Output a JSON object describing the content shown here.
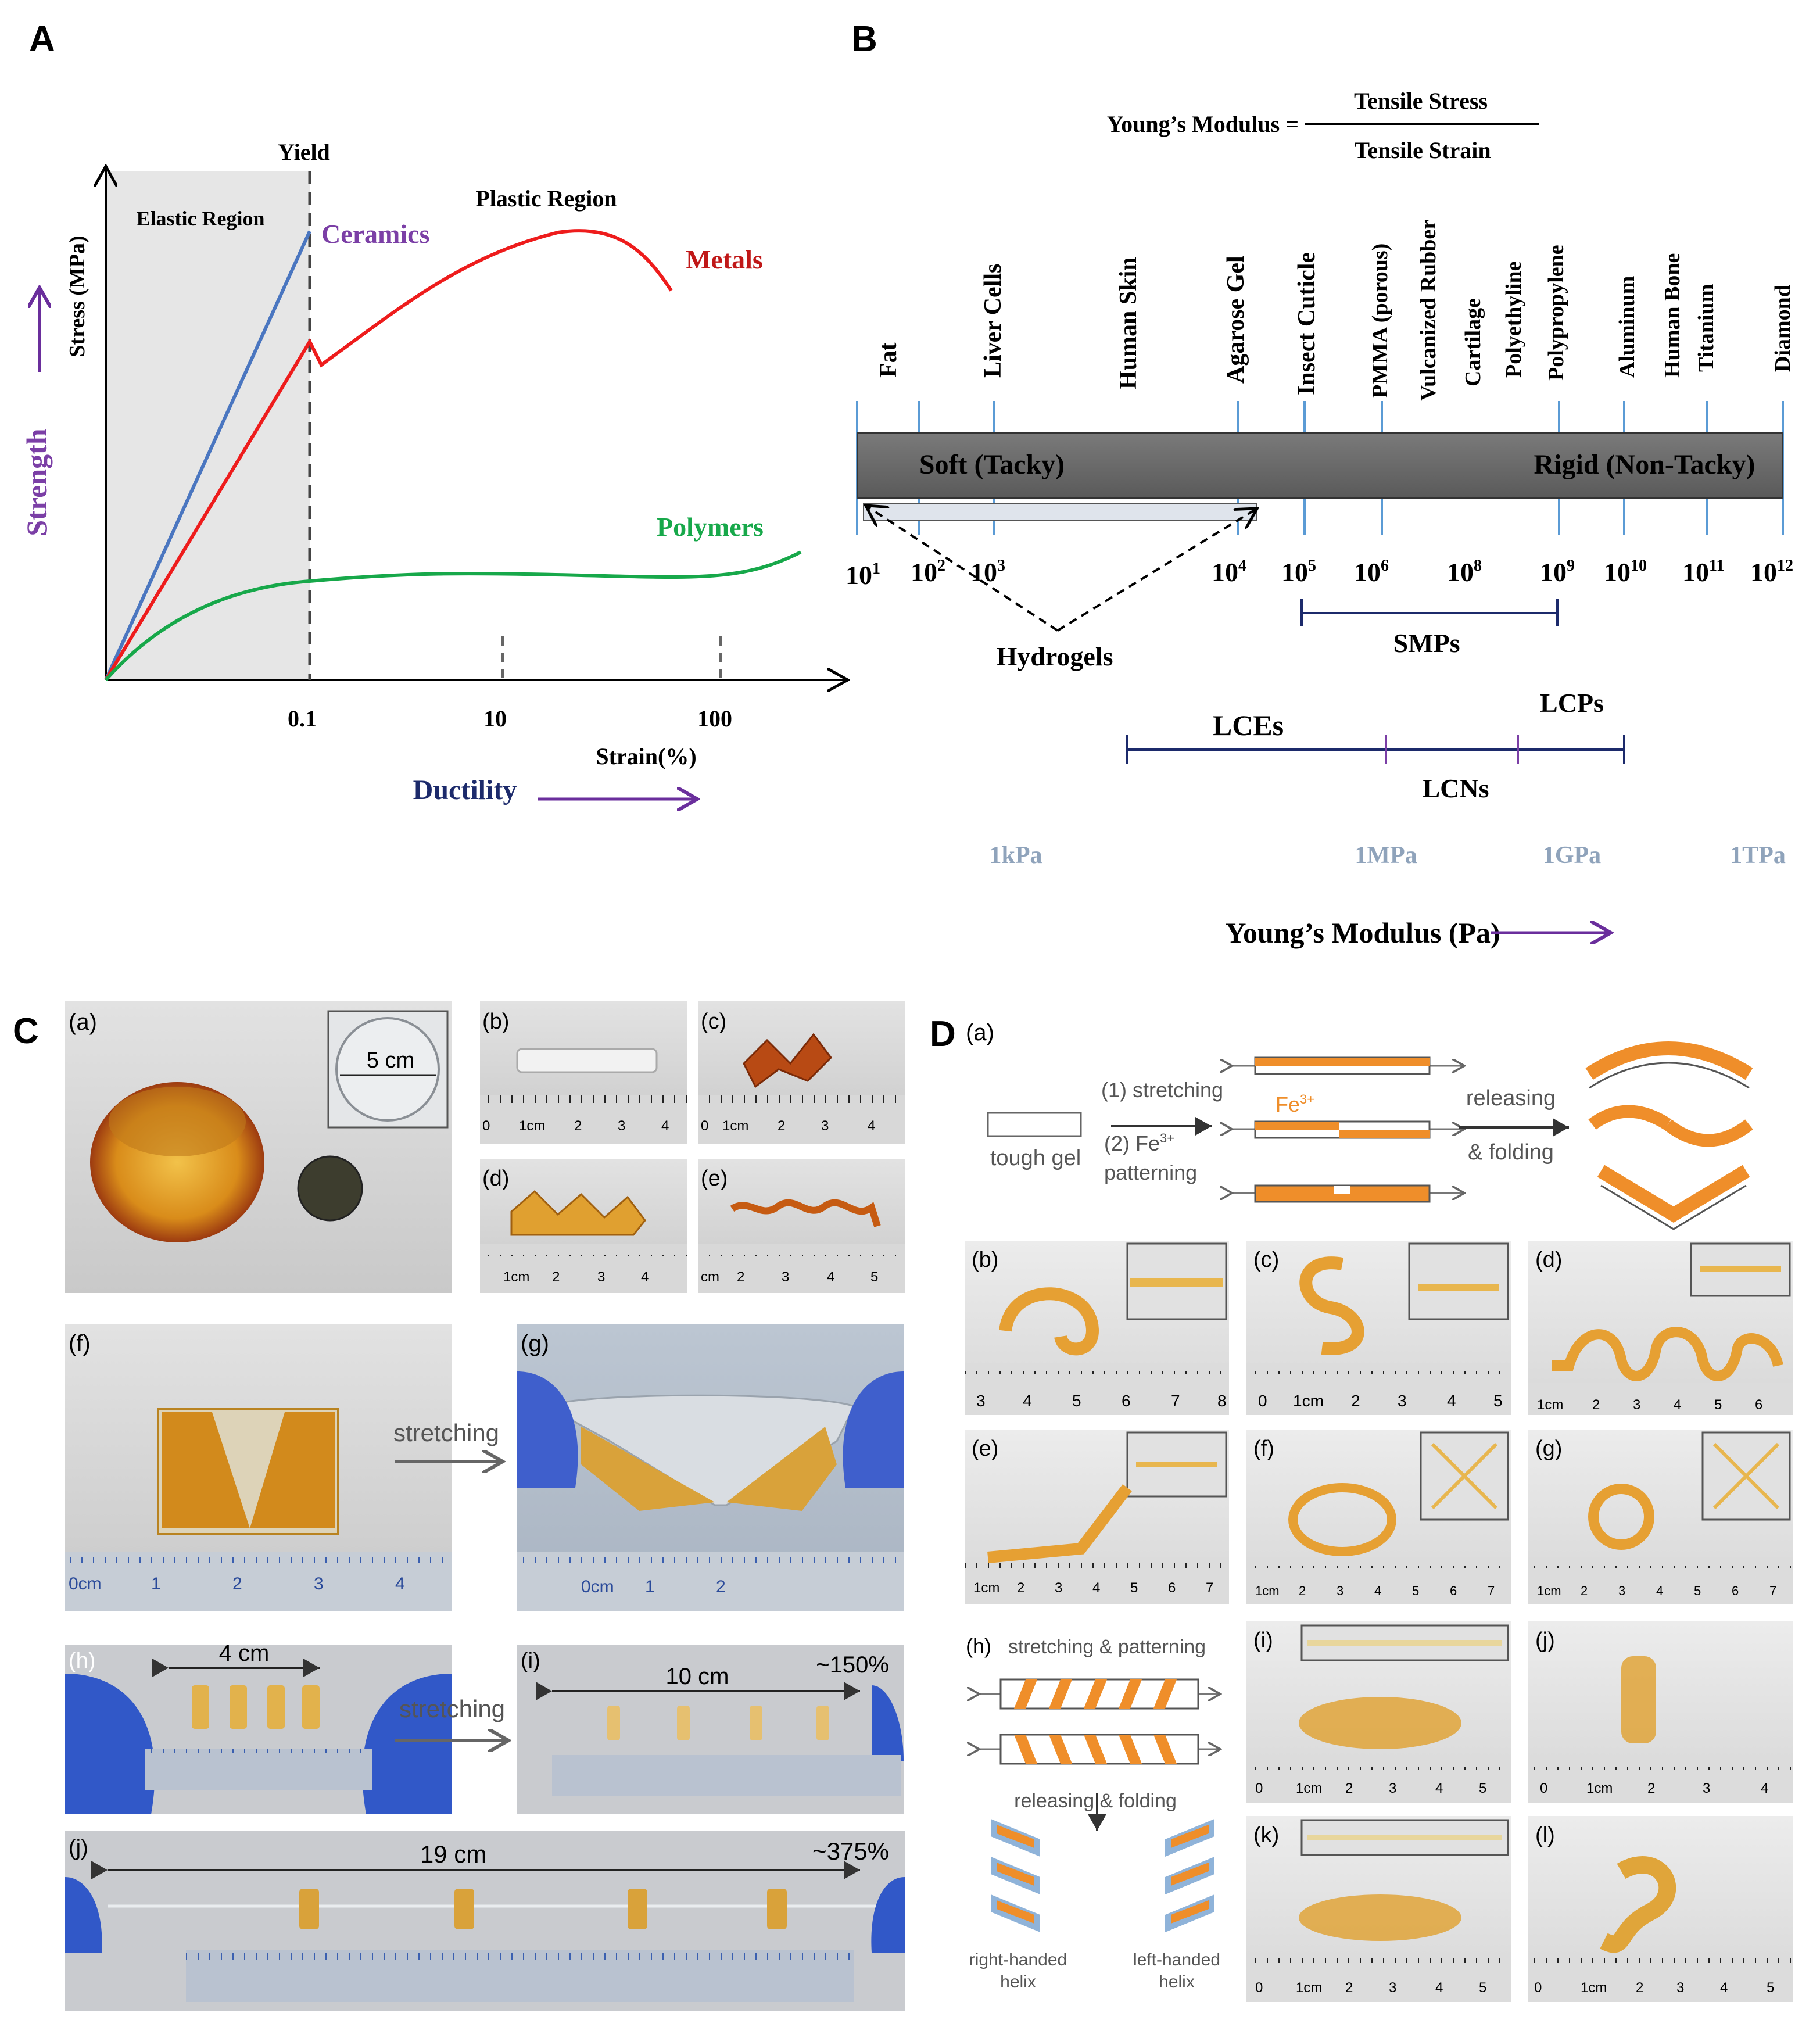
{
  "panel_letters": {
    "A": "A",
    "B": "B",
    "C": "C",
    "D": "D"
  },
  "colors": {
    "ceramics": "#4a76c0",
    "metals": "#ee1c1c",
    "polymers": "#17a84a",
    "purple": "#6a2e9c",
    "navy": "#1c2a6b",
    "modulus_unit": "#8fa3bb",
    "tick_blue": "#5b9bd5"
  },
  "panel_a": {
    "yield_label": "Yield",
    "elastic_label": "Elastic Region",
    "plastic_label": "Plastic Region",
    "y_axis_label": "Stress (MPa)",
    "x_axis_label": "Strain(%)",
    "strength_label": "Strength",
    "ductility_label": "Ductility",
    "ceramics_label": "Ceramics",
    "metals_label": "Metals",
    "polymers_label": "Polymers",
    "x_ticks": [
      "0.1",
      "10",
      "100"
    ]
  },
  "chart_data": {
    "type": "line",
    "title": "",
    "xlabel": "Strain(%)",
    "ylabel": "Stress (MPa)",
    "x_ticks": [
      "0.1",
      "10",
      "100"
    ],
    "regions": [
      "Elastic Region",
      "Plastic Region"
    ],
    "markers": [
      "Yield"
    ],
    "series": [
      {
        "name": "Ceramics",
        "shape": "linear rise to failure at yield (0.1%)"
      },
      {
        "name": "Metals",
        "shape": "linear to yield, drop, rise to peak in plastic region, then fall"
      },
      {
        "name": "Polymers",
        "shape": "low-stiffness rise then plateau, slight increase at high strain"
      }
    ]
  },
  "panel_b": {
    "formula_lhs": "Young’s Modulus =",
    "formula_num": "Tensile Stress",
    "formula_den": "Tensile Strain",
    "materials": [
      "Fat",
      "Liver Cells",
      "Human Skin",
      "Agarose Gel",
      "Insect Cuticle",
      "PMMA (porous)",
      "Vulcanized Rubber",
      "Cartilage",
      "Polyethyline",
      "Polypropylene",
      "Aluminum",
      "Human Bone",
      "Titanium",
      "Diamond"
    ],
    "soft_label": "Soft (Tacky)",
    "rigid_label": "Rigid (Non-Tacky)",
    "scale": [
      {
        "base": "10",
        "exp": "1"
      },
      {
        "base": "10",
        "exp": "2"
      },
      {
        "base": "10",
        "exp": "3"
      },
      {
        "base": "10",
        "exp": "4"
      },
      {
        "base": "10",
        "exp": "5"
      },
      {
        "base": "10",
        "exp": "6"
      },
      {
        "base": "10",
        "exp": "8"
      },
      {
        "base": "10",
        "exp": "9"
      },
      {
        "base": "10",
        "exp": "10"
      },
      {
        "base": "10",
        "exp": "11"
      },
      {
        "base": "10",
        "exp": "12"
      }
    ],
    "hydrogels_label": "Hydrogels",
    "smps_label": "SMPs",
    "lces_label": "LCEs",
    "lcns_label": "LCNs",
    "lcps_label": "LCPs",
    "units": [
      "1kPa",
      "1MPa",
      "1GPa",
      "1TPa"
    ],
    "axis_title": "Young’s Modulus (Pa)"
  },
  "panel_c": {
    "sub": {
      "a": "(a)",
      "b": "(b)",
      "c": "(c)",
      "d": "(d)",
      "e": "(e)",
      "f": "(f)",
      "g": "(g)",
      "h": "(h)",
      "i": "(i)",
      "j": "(j)"
    },
    "dish_label": "5 cm",
    "stretching_1": "stretching",
    "stretching_2": "stretching",
    "h_length": "4 cm",
    "i_length": "10 cm",
    "i_strain": "~150%",
    "j_length": "19 cm",
    "j_strain": "~375%",
    "ruler_b": [
      "0",
      "1cm",
      "2",
      "3",
      "4"
    ],
    "ruler_c": [
      "0",
      "1cm",
      "2",
      "3",
      "4"
    ],
    "ruler_d": [
      "1cm",
      "2",
      "3",
      "4"
    ],
    "ruler_e": [
      "cm",
      "2",
      "3",
      "4",
      "5"
    ],
    "ruler_f": [
      "0cm",
      "1",
      "2",
      "3",
      "4"
    ],
    "ruler_g": [
      "0cm",
      "1",
      "2"
    ]
  },
  "panel_d": {
    "sub": {
      "a": "(a)",
      "b": "(b)",
      "c": "(c)",
      "d": "(d)",
      "e": "(e)",
      "f": "(f)",
      "g": "(g)",
      "h": "(h)",
      "i": "(i)",
      "j": "(j)",
      "k": "(k)",
      "l": "(l)"
    },
    "tough_gel": "tough gel",
    "step1": "(1) stretching",
    "step2": "(2) Fe",
    "step2_sup": "3+",
    "step2_b": "patterning",
    "fe": "Fe",
    "fe_sup": "3+",
    "releasing": "releasing",
    "folding": "& folding",
    "h_title": "stretching & patterning",
    "h_release": "releasing & folding",
    "right_helix_1": "right-handed",
    "right_helix_2": "helix",
    "left_helix_1": "left-handed",
    "left_helix_2": "helix",
    "ruler_b": [
      "3",
      "4",
      "5",
      "6",
      "7",
      "8"
    ],
    "ruler_c": [
      "0",
      "1cm",
      "2",
      "3",
      "4",
      "5"
    ],
    "ruler_d": [
      "1cm",
      "2",
      "3",
      "4",
      "5",
      "6"
    ],
    "ruler_e": [
      "1cm",
      "2",
      "3",
      "4",
      "5",
      "6",
      "7"
    ],
    "ruler_f": [
      "1cm",
      "2",
      "3",
      "4",
      "5",
      "6",
      "7"
    ],
    "ruler_g": [
      "1cm",
      "2",
      "3",
      "4",
      "5",
      "6",
      "7"
    ],
    "ruler_i": [
      "0",
      "1cm",
      "2",
      "3",
      "4",
      "5"
    ],
    "ruler_j": [
      "0",
      "1cm",
      "2",
      "3",
      "4"
    ],
    "ruler_k": [
      "0",
      "1cm",
      "2",
      "3",
      "4",
      "5"
    ],
    "ruler_l": [
      "0",
      "1cm",
      "2",
      "3",
      "4",
      "5"
    ]
  }
}
